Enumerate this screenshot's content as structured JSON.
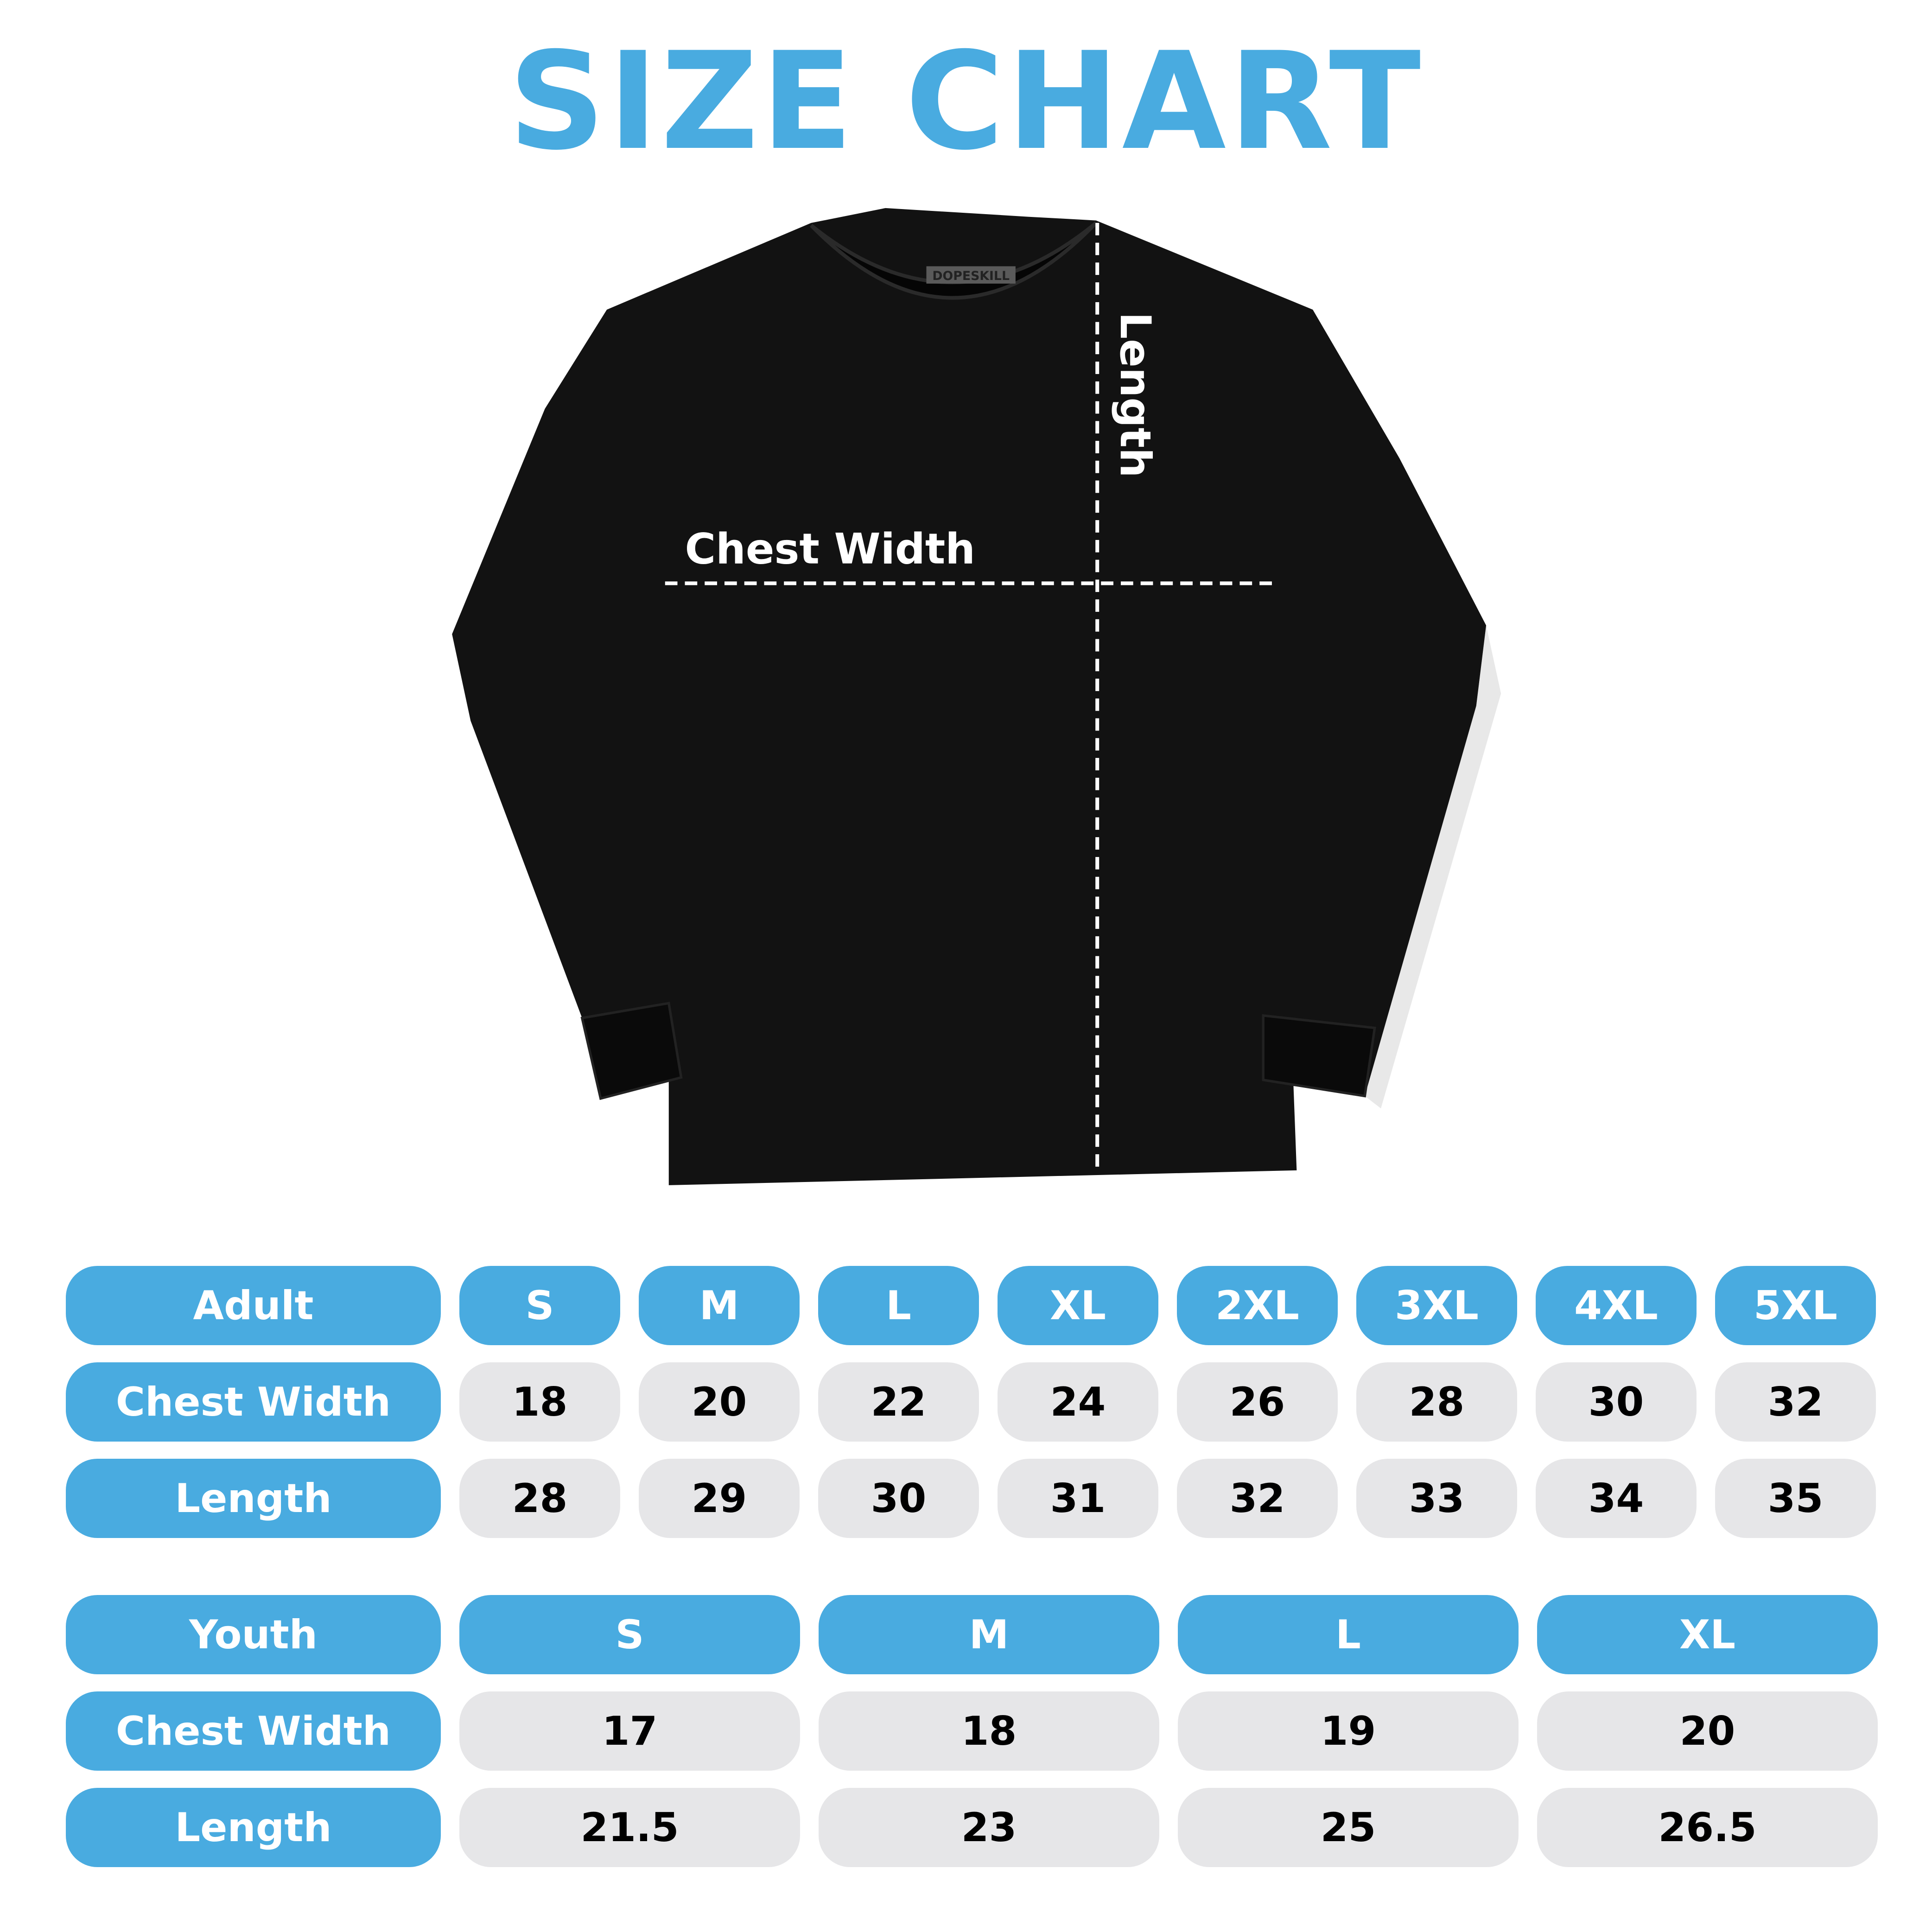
{
  "title": "SIZE CHART",
  "shirt": {
    "brand_tag": "DOPESKILL",
    "chest_label": "Chest Width",
    "length_label": "Length",
    "color": "#111111"
  },
  "colors": {
    "accent": "#49ABE0",
    "cell": "#E6E6E8"
  },
  "adult": {
    "header": "Adult",
    "sizes": [
      "S",
      "M",
      "L",
      "XL",
      "2XL",
      "3XL",
      "4XL",
      "5XL"
    ],
    "rows": [
      {
        "label": "Chest Width",
        "values": [
          "18",
          "20",
          "22",
          "24",
          "26",
          "28",
          "30",
          "32"
        ]
      },
      {
        "label": "Length",
        "values": [
          "28",
          "29",
          "30",
          "31",
          "32",
          "33",
          "34",
          "35"
        ]
      }
    ]
  },
  "youth": {
    "header": "Youth",
    "sizes": [
      "S",
      "M",
      "L",
      "XL"
    ],
    "rows": [
      {
        "label": "Chest Width",
        "values": [
          "17",
          "18",
          "19",
          "20"
        ]
      },
      {
        "label": "Length",
        "values": [
          "21.5",
          "23",
          "25",
          "26.5"
        ]
      }
    ]
  }
}
